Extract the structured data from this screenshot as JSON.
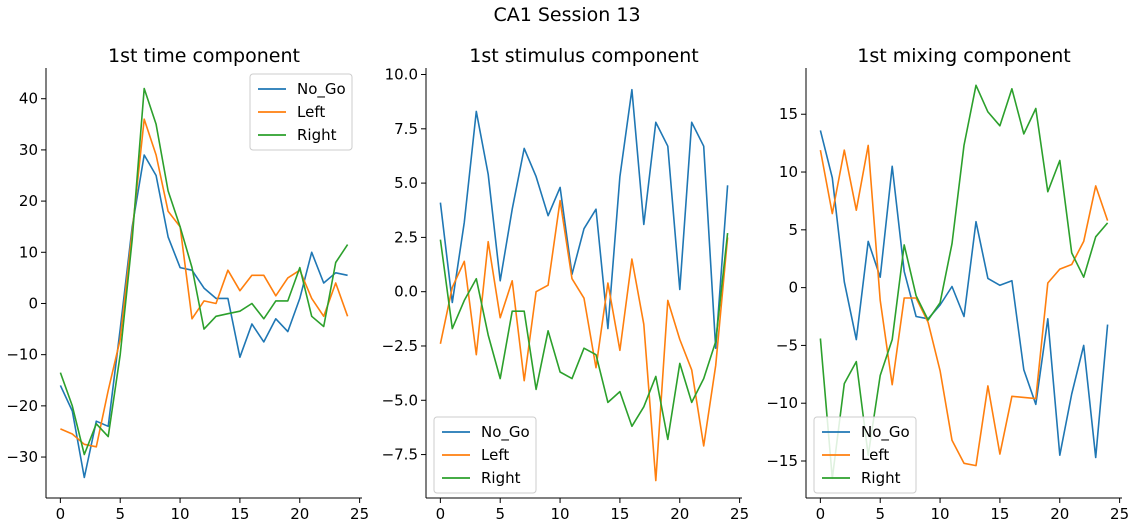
{
  "figure": {
    "suptitle": "CA1 Session 13"
  },
  "chart_data": [
    {
      "type": "line",
      "title": "1st time component",
      "xlim": [
        -1.2,
        25.2
      ],
      "ylim": [
        -38,
        46
      ],
      "xticks": [
        0,
        5,
        10,
        15,
        20,
        25
      ],
      "yticks": [
        -30,
        -20,
        -10,
        0,
        10,
        20,
        30,
        40
      ],
      "ytick_labels": [
        "−30",
        "−20",
        "−10",
        "0",
        "10",
        "20",
        "30",
        "40"
      ],
      "legend": "top-right",
      "x": [
        0,
        1,
        2,
        3,
        4,
        5,
        6,
        7,
        8,
        9,
        10,
        11,
        12,
        13,
        14,
        15,
        16,
        17,
        18,
        19,
        20,
        21,
        22,
        23,
        24
      ],
      "series": [
        {
          "name": "No_Go",
          "color": "#1f77b4",
          "values": [
            -16,
            -21,
            -34,
            -23,
            -24,
            -5,
            15,
            29,
            25,
            13,
            7,
            6.5,
            3,
            1,
            1,
            -10.5,
            -4,
            -7.5,
            -3,
            -5.5,
            1,
            10,
            4,
            6,
            5.5
          ]
        },
        {
          "name": "Left",
          "color": "#ff7f0e",
          "values": [
            -24.5,
            -25.5,
            -27.5,
            -28,
            -17,
            -7,
            14,
            36,
            29,
            18,
            15,
            -3,
            0.5,
            0,
            6.5,
            2.5,
            5.5,
            5.5,
            1.5,
            5,
            6.5,
            1,
            -2.5,
            4,
            -2.5
          ]
        },
        {
          "name": "Right",
          "color": "#2ca02c",
          "values": [
            -13.5,
            -20,
            -29.5,
            -23.5,
            -26,
            -10,
            12.5,
            42,
            35,
            22,
            15,
            7,
            -5,
            -2.5,
            -2,
            -1.5,
            0,
            -3,
            0.5,
            0.5,
            7,
            -2.5,
            -4.5,
            8,
            11.5
          ]
        }
      ]
    },
    {
      "type": "line",
      "title": "1st stimulus component",
      "xlim": [
        -1.2,
        25.2
      ],
      "ylim": [
        -9.5,
        10.3
      ],
      "xticks": [
        0,
        5,
        10,
        15,
        20,
        25
      ],
      "yticks": [
        -7.5,
        -5,
        -2.5,
        0,
        2.5,
        5,
        7.5,
        10
      ],
      "ytick_labels": [
        "−7.5",
        "−5.0",
        "−2.5",
        "0.0",
        "2.5",
        "5.0",
        "7.5",
        "10.0"
      ],
      "legend": "lower-left",
      "x": [
        0,
        1,
        2,
        3,
        4,
        5,
        6,
        7,
        8,
        9,
        10,
        11,
        12,
        13,
        14,
        15,
        16,
        17,
        18,
        19,
        20,
        21,
        22,
        23,
        24
      ],
      "series": [
        {
          "name": "No_Go",
          "color": "#1f77b4",
          "values": [
            4.1,
            -0.5,
            3.2,
            8.3,
            5.4,
            0.5,
            3.8,
            6.6,
            5.3,
            3.5,
            4.8,
            0.8,
            2.9,
            3.8,
            -1.7,
            5.3,
            9.3,
            3.1,
            7.8,
            6.7,
            0.1,
            7.8,
            6.7,
            -2.6,
            4.9
          ]
        },
        {
          "name": "Left",
          "color": "#ff7f0e",
          "values": [
            -2.4,
            0.2,
            1.4,
            -2.9,
            2.3,
            -1.2,
            0.5,
            -4.1,
            0,
            0.3,
            4.2,
            0.6,
            -0.3,
            -3.5,
            0.4,
            -2.7,
            1.5,
            -1.5,
            -8.7,
            -0.4,
            -2.2,
            -3.6,
            -7.1,
            -3.4,
            2.5
          ]
        },
        {
          "name": "Right",
          "color": "#2ca02c",
          "values": [
            2.4,
            -1.7,
            -0.4,
            0.6,
            -2.0,
            -4.0,
            -0.9,
            -0.9,
            -4.5,
            -1.8,
            -3.7,
            -4.0,
            -2.6,
            -2.9,
            -5.1,
            -4.6,
            -6.2,
            -5.3,
            -3.9,
            -6.8,
            -3.3,
            -5.1,
            -4.0,
            -2.3,
            2.7
          ]
        }
      ]
    },
    {
      "type": "line",
      "title": "1st mixing component",
      "xlim": [
        -1.2,
        25.2
      ],
      "ylim": [
        -18.2,
        19.0
      ],
      "xticks": [
        0,
        5,
        10,
        15,
        20,
        25
      ],
      "yticks": [
        -15,
        -10,
        -5,
        0,
        5,
        10,
        15
      ],
      "ytick_labels": [
        "−15",
        "−10",
        "−5",
        "0",
        "5",
        "10",
        "15"
      ],
      "legend": "lower-left",
      "x": [
        0,
        1,
        2,
        3,
        4,
        5,
        6,
        7,
        8,
        9,
        10,
        11,
        12,
        13,
        14,
        15,
        16,
        17,
        18,
        19,
        20,
        21,
        22,
        23,
        24
      ],
      "series": [
        {
          "name": "No_Go",
          "color": "#1f77b4",
          "values": [
            13.6,
            9.5,
            0.5,
            -4.5,
            4,
            0.9,
            10.5,
            1.4,
            -2.5,
            -2.7,
            -1.5,
            0.1,
            -2.5,
            5.7,
            0.8,
            0.2,
            0.6,
            -7.1,
            -10.1,
            -2.7,
            -14.5,
            -9.2,
            -5.0,
            -14.7,
            -3.2
          ]
        },
        {
          "name": "Left",
          "color": "#ff7f0e",
          "values": [
            11.9,
            6.4,
            11.9,
            6.7,
            12.3,
            -1.1,
            -8.4,
            -0.9,
            -0.9,
            -3,
            -7.2,
            -13.2,
            -15.2,
            -15.4,
            -8.5,
            -14.4,
            -9.4,
            -9.5,
            -9.6,
            0.4,
            1.6,
            2,
            4,
            8.8,
            5.8
          ]
        },
        {
          "name": "Right",
          "color": "#2ca02c",
          "values": [
            -4.4,
            -16.5,
            -8.3,
            -6.4,
            -14.5,
            -7.6,
            -4.5,
            3.7,
            -0.7,
            -2.8,
            -1.3,
            3.8,
            12.3,
            17.5,
            15.2,
            14,
            17.2,
            13.3,
            15.5,
            8.3,
            11,
            3,
            0.9,
            4.4,
            5.6
          ]
        }
      ]
    }
  ]
}
